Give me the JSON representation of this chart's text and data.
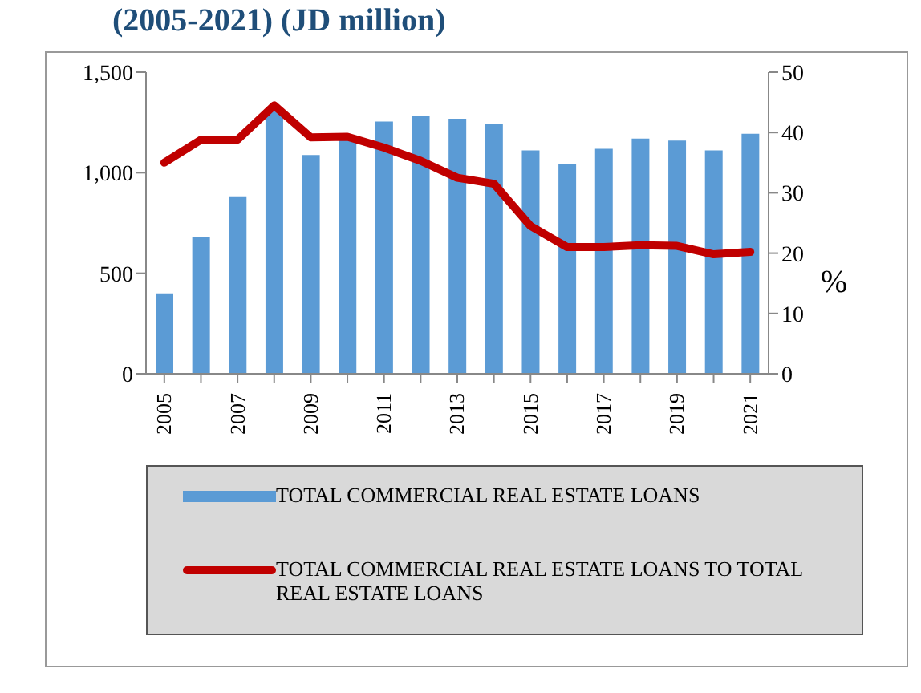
{
  "chart_data": {
    "type": "bar",
    "title": "(2005-2021) (JD million)",
    "y2label": "%",
    "categories": [
      "2005",
      null,
      "2007",
      null,
      "2009",
      null,
      "2011",
      null,
      "2013",
      null,
      "2015",
      null,
      "2017",
      null,
      "2019",
      null,
      "2021"
    ],
    "series": [
      {
        "name": "TOTAL COMMERCIAL REAL ESTATE LOANS",
        "color": "#5b9bd5",
        "values": [
          400,
          680,
          883,
          1310,
          1088,
          1165,
          1255,
          1282,
          1269,
          1242,
          1111,
          1043,
          1119,
          1170,
          1160,
          1111,
          1194
        ]
      },
      {
        "name": "TOTAL COMMERCIAL REAL ESTATE LOANS TO TOTAL REAL ESTATE LOANS",
        "type": "line",
        "axis": "y2",
        "color": "#c00000",
        "values": [
          35,
          38.8,
          38.8,
          44.5,
          39.2,
          39.3,
          37.5,
          35.3,
          32.5,
          31.5,
          24.5,
          21,
          21,
          21.3,
          21.2,
          19.8,
          20.2
        ]
      }
    ],
    "ylim": [
      0,
      1500
    ],
    "yticks": [
      0,
      {
        "value": 500,
        "label": "500"
      },
      {
        "value": 1000,
        "label": "1,000"
      },
      {
        "value": 1500,
        "label": "1,500"
      }
    ],
    "y2lim": [
      0,
      50
    ],
    "y2ticks": [
      0,
      10,
      20,
      30,
      40,
      50
    ],
    "grid": false,
    "legend": "bottom",
    "marker": "none",
    "line_style": "solid"
  }
}
